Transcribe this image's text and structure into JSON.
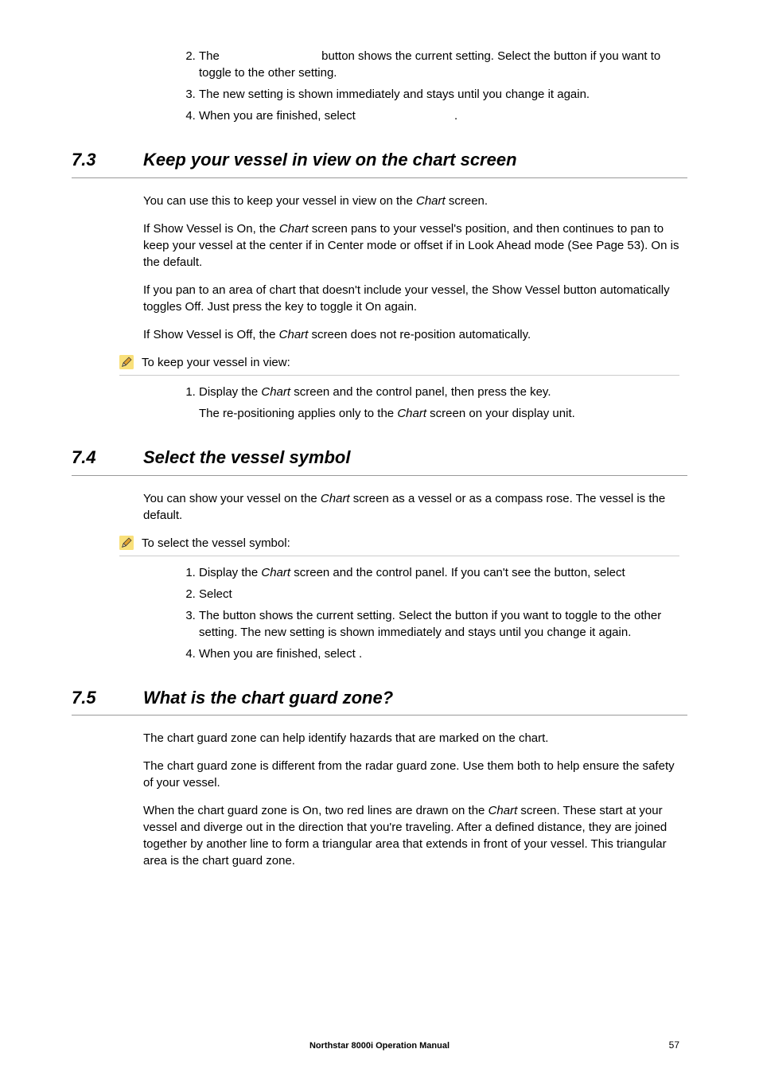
{
  "top_steps": [
    {
      "marker": "2.",
      "text_parts": [
        "The ",
        " button shows the current setting. Select the button if you want to toggle to the other setting."
      ]
    },
    {
      "marker": "3.",
      "text_parts": [
        "The new setting is shown immediately and stays until you change it again."
      ]
    },
    {
      "marker": "4.",
      "text_parts": [
        "When you are finished, select ",
        "."
      ]
    }
  ],
  "sections": [
    {
      "num": "7.3",
      "title": "Keep your vessel in view on the chart screen",
      "paras": [
        {
          "runs": [
            {
              "t": "You can use this to keep your vessel in view on the ",
              "i": false
            },
            {
              "t": "Chart",
              "i": true
            },
            {
              "t": " screen.",
              "i": false
            }
          ]
        },
        {
          "runs": [
            {
              "t": "If Show Vessel is On, the ",
              "i": false
            },
            {
              "t": "Chart",
              "i": true
            },
            {
              "t": " screen pans to your vessel's position, and then continues to pan to keep your vessel at the center if in Center mode or offset if in Look Ahead mode (See Page 53). On is the default.",
              "i": false
            }
          ]
        },
        {
          "runs": [
            {
              "t": "If you pan to an area of chart that doesn't include your vessel, the Show Vessel button automatically toggles Off. Just press the ",
              "i": false
            },
            {
              "t": " key to toggle it On again.",
              "i": false
            }
          ]
        },
        {
          "runs": [
            {
              "t": "If Show Vessel is Off, the ",
              "i": false
            },
            {
              "t": "Chart",
              "i": true
            },
            {
              "t": " screen does not re-position automatically.",
              "i": false
            }
          ]
        }
      ],
      "proc": {
        "label": "To keep your vessel in view:",
        "steps": [
          {
            "marker": "1.",
            "runs": [
              {
                "t": "Display the ",
                "i": false
              },
              {
                "t": "Chart",
                "i": true
              },
              {
                "t": " screen and the control panel, then press the ",
                "i": false
              },
              {
                "t": " key.",
                "i": false
              }
            ]
          }
        ],
        "note_runs": [
          {
            "t": "The re-positioning applies only to the ",
            "i": false
          },
          {
            "t": "Chart",
            "i": true
          },
          {
            "t": " screen on your display unit.",
            "i": false
          }
        ]
      }
    },
    {
      "num": "7.4",
      "title": "Select the vessel symbol",
      "paras": [
        {
          "runs": [
            {
              "t": "You can show your vessel on the ",
              "i": false
            },
            {
              "t": "Chart",
              "i": true
            },
            {
              "t": " screen as a vessel or as a compass rose. The vessel is the default.",
              "i": false
            }
          ]
        }
      ],
      "proc": {
        "label": "To select the vessel symbol:",
        "steps": [
          {
            "marker": "1.",
            "runs": [
              {
                "t": "Display the ",
                "i": false
              },
              {
                "t": "Chart",
                "i": true
              },
              {
                "t": " screen and the control panel. If you can't see the ",
                "i": false
              },
              {
                "t": " button, select ",
                "i": false
              }
            ]
          },
          {
            "marker": "2.",
            "runs": [
              {
                "t": "Select ",
                "i": false
              }
            ]
          },
          {
            "marker": "3.",
            "runs": [
              {
                "t": "The ",
                "i": false
              },
              {
                "t": " button shows the current setting. Select the button  if you want to toggle to the other setting. The new setting is shown immediately and stays until you change it again.",
                "i": false
              }
            ]
          },
          {
            "marker": "4.",
            "runs": [
              {
                "t": "When you are finished, select ",
                "i": false
              },
              {
                "t": ".",
                "i": false
              }
            ]
          }
        ]
      }
    },
    {
      "num": "7.5",
      "title": "What is the chart guard zone?",
      "paras": [
        {
          "runs": [
            {
              "t": "The chart guard zone can help identify hazards that are marked on the chart.",
              "i": false
            }
          ]
        },
        {
          "runs": [
            {
              "t": "The chart guard zone is different from the radar guard zone. Use them both to help ensure the safety of your vessel.",
              "i": false
            }
          ]
        },
        {
          "runs": [
            {
              "t": "When the chart guard zone is On, two red lines are drawn on the ",
              "i": false
            },
            {
              "t": "Chart",
              "i": true
            },
            {
              "t": " screen. These start at your vessel and diverge out in the direction that you're traveling. After a defined distance, they are joined together by another line to form a triangular area that extends in front of your vessel. This triangular area is the chart guard zone.",
              "i": false
            }
          ]
        }
      ]
    }
  ],
  "footer": {
    "title": "Northstar 8000i Operation Manual",
    "page": "57"
  },
  "colors": {
    "text": "#000000",
    "rule_dark": "#999999",
    "rule_light": "#cccccc",
    "pencil_bg": "#f9e07a",
    "pencil_stroke": "#333333"
  }
}
